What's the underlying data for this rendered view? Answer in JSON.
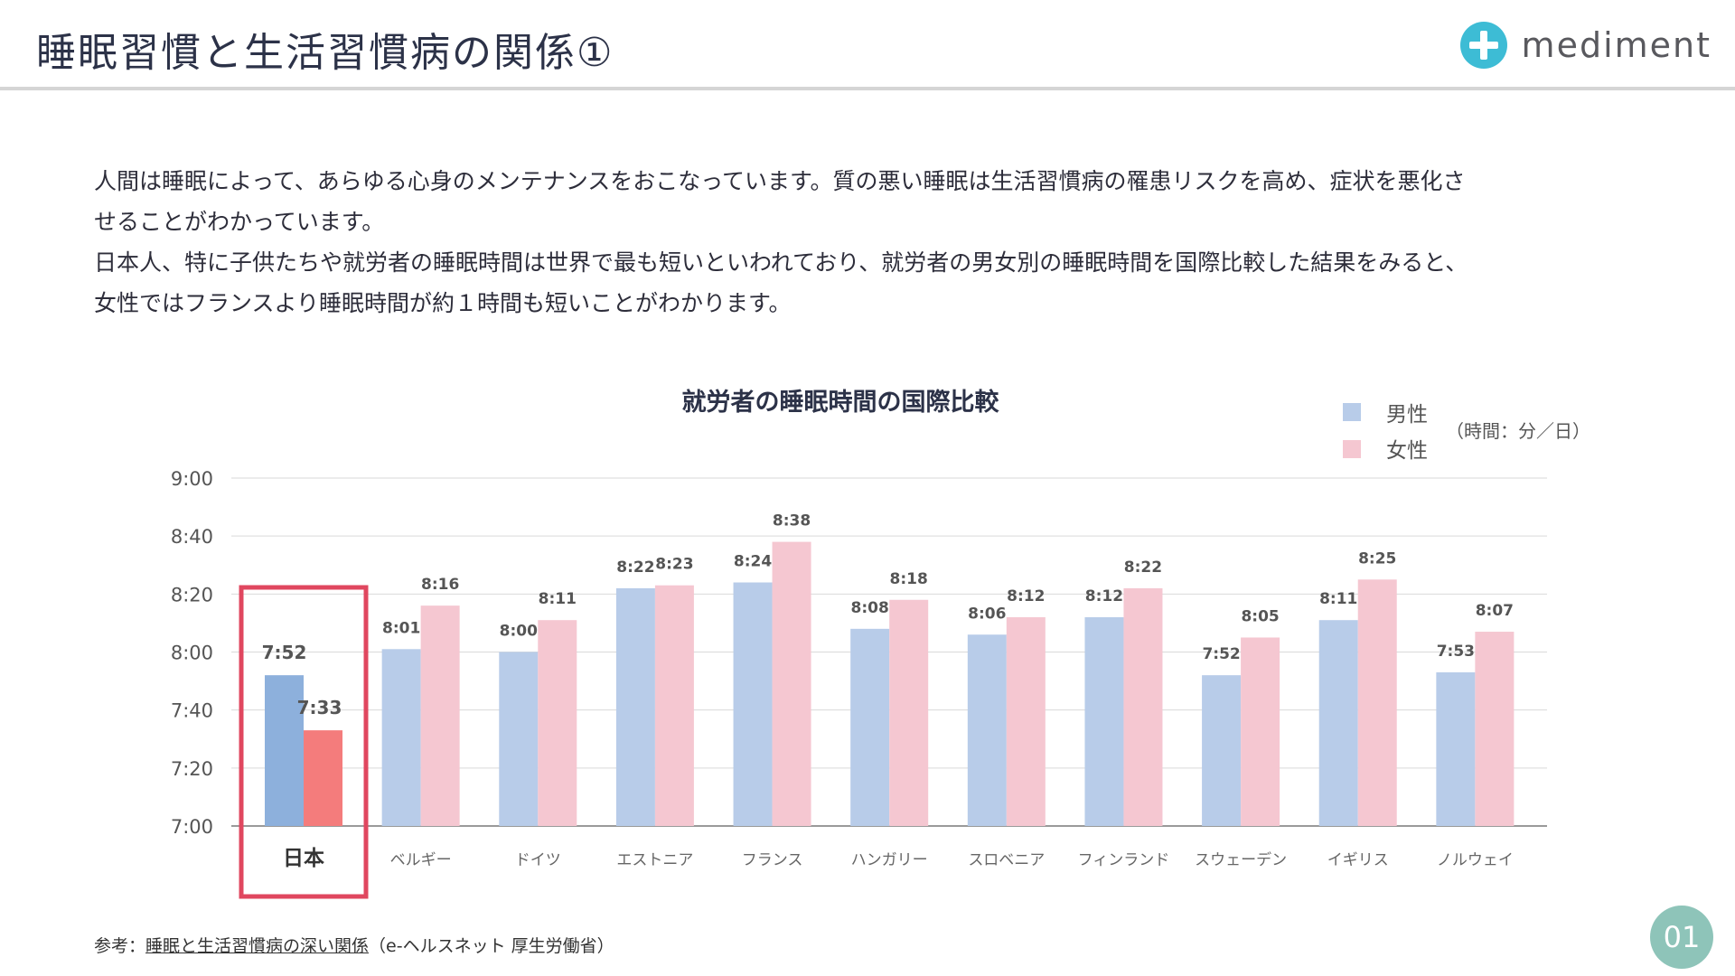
{
  "header": {
    "title": "睡眠習慣と生活習慣病の関係①",
    "logo_text": "mediment"
  },
  "intro": {
    "lines": [
      "人間は睡眠によって、あらゆる心身のメンテナンスをおこなっています。質の悪い睡眠は生活習慣病の罹患リスクを高め、症状を悪化さ",
      "せることがわかっています。",
      "日本人、特に子供たちや就労者の睡眠時間は世界で最も短いといわれており、就労者の男女別の睡眠時間を国際比較した結果をみると、",
      "女性ではフランスより睡眠時間が約１時間も短いことがわかります。"
    ]
  },
  "chart_data": {
    "type": "bar",
    "title": "就労者の睡眠時間の国際比較",
    "unit_note": "（時間：分／日）",
    "categories": [
      "日本",
      "ベルギー",
      "ドイツ",
      "エストニア",
      "フランス",
      "ハンガリー",
      "スロベニア",
      "フィンランド",
      "スウェーデン",
      "イギリス",
      "ノルウェイ"
    ],
    "series": [
      {
        "name": "男性",
        "values": [
          472,
          481,
          480,
          502,
          504,
          488,
          486,
          492,
          472,
          491,
          473
        ],
        "labels": [
          "7:52",
          "8:01",
          "8:00",
          "8:22",
          "8:24",
          "8:08",
          "8:06",
          "8:12",
          "7:52",
          "8:11",
          "7:53"
        ]
      },
      {
        "name": "女性",
        "values": [
          453,
          496,
          491,
          503,
          518,
          498,
          492,
          502,
          485,
          505,
          487
        ],
        "labels": [
          "7:33",
          "8:16",
          "8:11",
          "8:23",
          "8:38",
          "8:18",
          "8:12",
          "8:22",
          "8:05",
          "8:25",
          "8:07"
        ]
      }
    ],
    "y_ticks": [
      "7:00",
      "7:20",
      "7:40",
      "8:00",
      "8:20",
      "8:40",
      "9:00"
    ],
    "ylim": [
      420,
      540
    ],
    "grid": true,
    "legend_position": "top-right",
    "highlight_category": "日本",
    "colors": {
      "male": "#b8cce9",
      "female": "#f5c7d1",
      "male_highlight": "#8db0dc",
      "female_highlight": "#f47c7c",
      "highlight_border": "#e0475f"
    }
  },
  "footer": {
    "source_prefix": "参考：",
    "source_link": "睡眠と生活習慣病の深い関係",
    "source_suffix": "（e-ヘルスネット 厚生労働省）",
    "page_number": "01"
  }
}
